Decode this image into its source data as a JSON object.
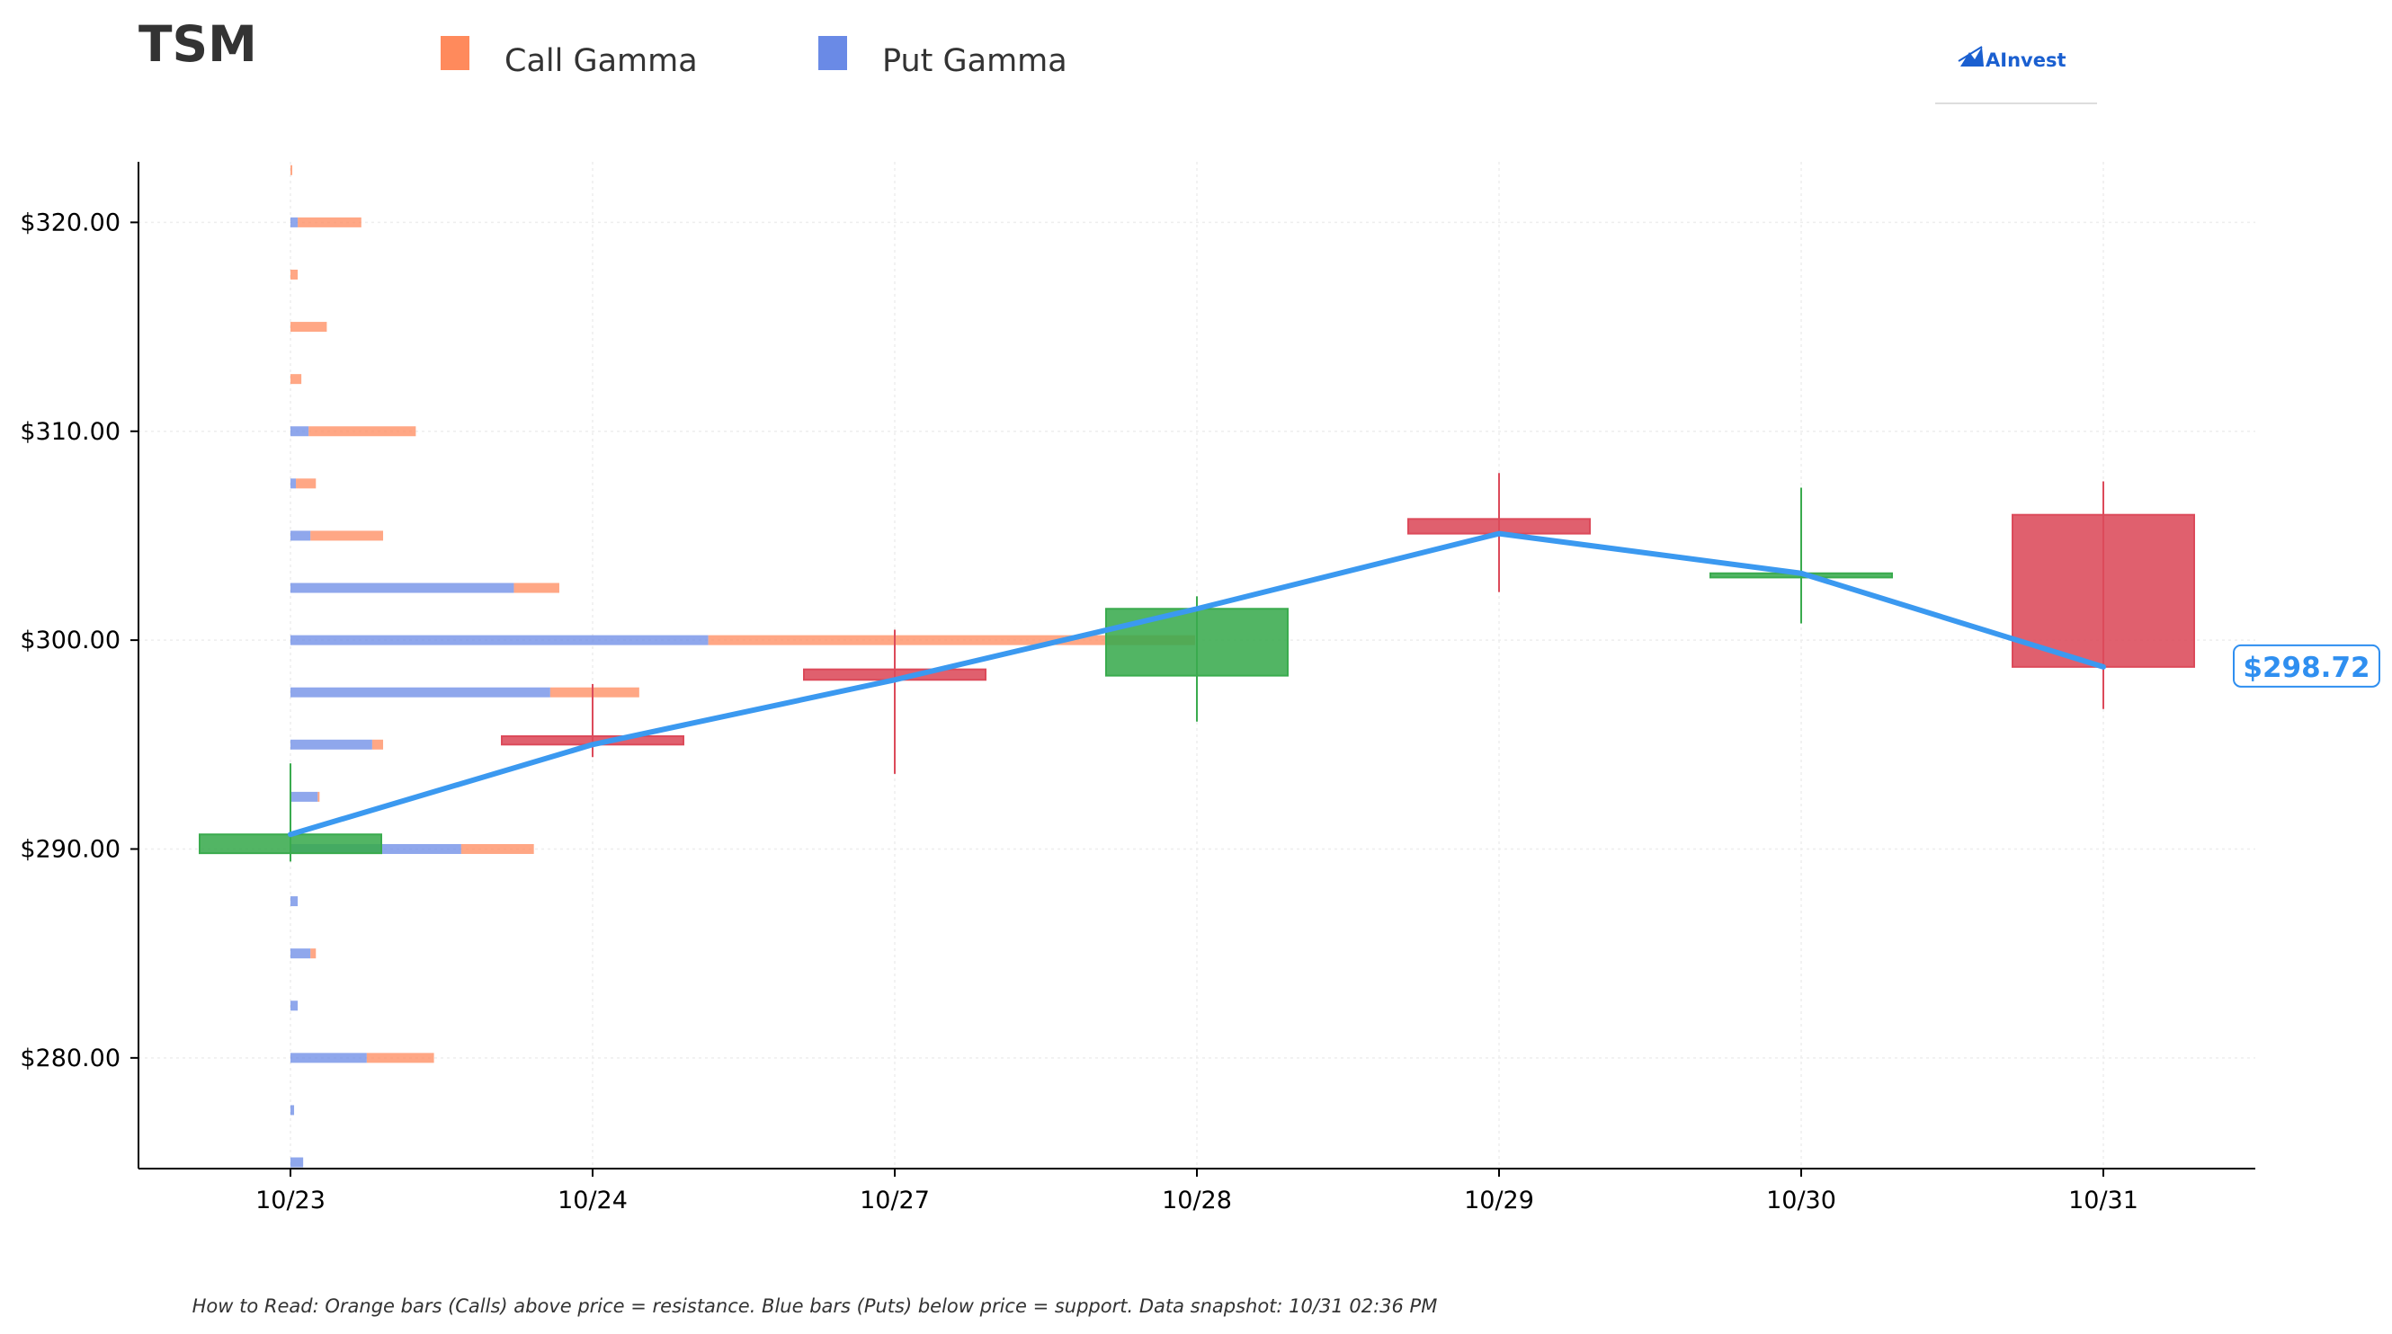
{
  "ticker": "TSM",
  "legend": {
    "call_label": "Call Gamma",
    "put_label": "Put Gamma",
    "call_color": "#ff8a5c",
    "put_color": "#6a8ae6"
  },
  "brand": {
    "name": "AInvest",
    "color": "#1a5fd0",
    "icon": "ainvest-logo-icon"
  },
  "footer": "How to Read: Orange bars (Calls) above price = resistance. Blue bars (Puts) below price = support. Data snapshot: 10/31 02:36 PM",
  "current_price": {
    "label": "$298.72",
    "value": 298.72,
    "color": "#2f8ff0"
  },
  "chart_data": {
    "type": "candlestick",
    "ylim": [
      274.7,
      322.9
    ],
    "y_ticks": [
      {
        "value": 280,
        "label": "$280.00"
      },
      {
        "value": 290,
        "label": "$290.00"
      },
      {
        "value": 300,
        "label": "$300.00"
      },
      {
        "value": 310,
        "label": "$310.00"
      },
      {
        "value": 320,
        "label": "$320.00"
      }
    ],
    "categories": [
      "10/23",
      "10/24",
      "10/27",
      "10/28",
      "10/29",
      "10/30",
      "10/31"
    ],
    "grid": true,
    "colors": {
      "up": "#3aab4e",
      "down": "#dc4a5a",
      "line": "#3b99f0"
    },
    "candles": [
      {
        "date": "10/23",
        "open": 289.8,
        "high": 294.1,
        "low": 289.4,
        "close": 290.7
      },
      {
        "date": "10/24",
        "open": 295.4,
        "high": 297.9,
        "low": 294.4,
        "close": 295.0
      },
      {
        "date": "10/27",
        "open": 298.6,
        "high": 300.5,
        "low": 293.6,
        "close": 298.1
      },
      {
        "date": "10/28",
        "open": 298.3,
        "high": 302.1,
        "low": 296.1,
        "close": 301.5
      },
      {
        "date": "10/29",
        "open": 305.8,
        "high": 308.0,
        "low": 302.3,
        "close": 305.1
      },
      {
        "date": "10/30",
        "open": 303.0,
        "high": 307.3,
        "low": 300.8,
        "close": 303.2
      },
      {
        "date": "10/31",
        "open": 306.0,
        "high": 307.6,
        "low": 296.7,
        "close": 298.72
      }
    ],
    "price_line": {
      "dates": [
        "10/23",
        "10/24",
        "10/27",
        "10/28",
        "10/29",
        "10/30",
        "10/31"
      ],
      "values": [
        290.7,
        295.0,
        298.1,
        301.5,
        305.1,
        303.2,
        298.72
      ]
    },
    "gamma_strikes": [
      {
        "strike": 322.5,
        "put": 0.0,
        "call": 0.1
      },
      {
        "strike": 320.0,
        "put": 0.4,
        "call": 3.5
      },
      {
        "strike": 317.5,
        "put": 0.0,
        "call": 0.4
      },
      {
        "strike": 315.0,
        "put": 0.0,
        "call": 2.0
      },
      {
        "strike": 312.5,
        "put": 0.0,
        "call": 0.6
      },
      {
        "strike": 310.0,
        "put": 1.0,
        "call": 5.9
      },
      {
        "strike": 307.5,
        "put": 0.3,
        "call": 1.1
      },
      {
        "strike": 305.0,
        "put": 1.1,
        "call": 4.0
      },
      {
        "strike": 302.5,
        "put": 12.3,
        "call": 2.5
      },
      {
        "strike": 300.0,
        "put": 23.0,
        "call": 26.8
      },
      {
        "strike": 297.5,
        "put": 14.3,
        "call": 4.9
      },
      {
        "strike": 295.0,
        "put": 4.5,
        "call": 0.6
      },
      {
        "strike": 292.5,
        "put": 1.5,
        "call": 0.1
      },
      {
        "strike": 290.0,
        "put": 9.4,
        "call": 4.0
      },
      {
        "strike": 287.5,
        "put": 0.4,
        "call": 0.0
      },
      {
        "strike": 285.0,
        "put": 1.1,
        "call": 0.3
      },
      {
        "strike": 282.5,
        "put": 0.4,
        "call": 0.0
      },
      {
        "strike": 280.0,
        "put": 4.2,
        "call": 3.7
      },
      {
        "strike": 277.5,
        "put": 0.2,
        "call": 0.0
      },
      {
        "strike": 275.0,
        "put": 0.7,
        "call": 0.0
      }
    ]
  }
}
